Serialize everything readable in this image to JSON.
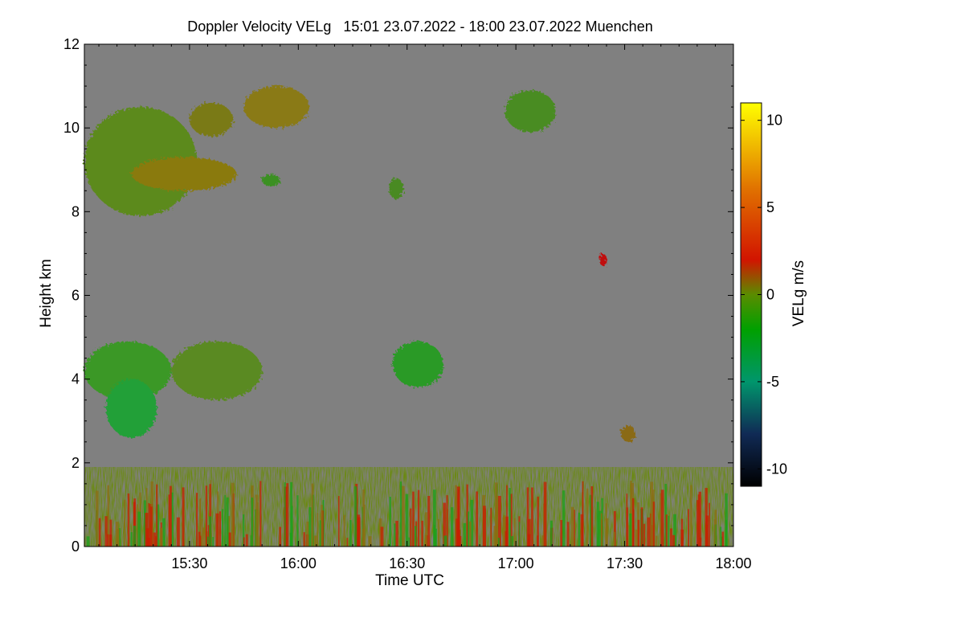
{
  "chart_data": {
    "type": "heatmap",
    "title": "Doppler Velocity VELg   15:01 23.07.2022 - 18:00 23.07.2022 Muenchen",
    "xlabel": "Time UTC",
    "ylabel": "Height km",
    "x_range_minutes_utc": [
      901,
      1080
    ],
    "xlim": [
      "15:01",
      "18:00"
    ],
    "x_ticks": [
      {
        "label": "15:30",
        "minutes": 930
      },
      {
        "label": "16:00",
        "minutes": 960
      },
      {
        "label": "16:30",
        "minutes": 990
      },
      {
        "label": "17:00",
        "minutes": 1020
      },
      {
        "label": "17:30",
        "minutes": 1050
      },
      {
        "label": "18:00",
        "minutes": 1080
      }
    ],
    "ylim": [
      0,
      12
    ],
    "y_ticks": [
      {
        "label": "0",
        "value": 0
      },
      {
        "label": "2",
        "value": 2
      },
      {
        "label": "4",
        "value": 4
      },
      {
        "label": "6",
        "value": 6
      },
      {
        "label": "8",
        "value": 8
      },
      {
        "label": "10",
        "value": 10
      },
      {
        "label": "12",
        "value": 12
      }
    ],
    "background_color": "#808080",
    "colorbar": {
      "label": "VELg m/s",
      "range": [
        -11,
        11
      ],
      "ticks": [
        {
          "label": "10",
          "value": 10
        },
        {
          "label": "5",
          "value": 5
        },
        {
          "label": "0",
          "value": 0
        },
        {
          "label": "-5",
          "value": -5
        },
        {
          "label": "-10",
          "value": -10
        }
      ],
      "colors": [
        {
          "value": -11,
          "color": "#000000"
        },
        {
          "value": -8,
          "color": "#102a55"
        },
        {
          "value": -5,
          "color": "#00966c"
        },
        {
          "value": -2,
          "color": "#00a000"
        },
        {
          "value": 0,
          "color": "#5a8c00"
        },
        {
          "value": 2,
          "color": "#d21400"
        },
        {
          "value": 6,
          "color": "#e07000"
        },
        {
          "value": 11,
          "color": "#ffff00"
        }
      ]
    },
    "regions": [
      {
        "name": "upper-cloud-main",
        "t": [
          901,
          932
        ],
        "h": [
          7.9,
          10.5
        ],
        "velocity": -0.6,
        "color": "#5c8a1a"
      },
      {
        "name": "upper-cloud-tail",
        "t": [
          914,
          943
        ],
        "h": [
          8.5,
          9.3
        ],
        "velocity": 2.0,
        "color": "#8a7a10"
      },
      {
        "name": "upper-cloud-streak",
        "t": [
          930,
          942
        ],
        "h": [
          9.8,
          10.6
        ],
        "velocity": 1.5,
        "color": "#7a7a18"
      },
      {
        "name": "upper-cloud-right",
        "t": [
          945,
          963
        ],
        "h": [
          10.0,
          11.0
        ],
        "velocity": 1.5,
        "color": "#8a7a18"
      },
      {
        "name": "small-cloud-930",
        "t": [
          950,
          955
        ],
        "h": [
          8.6,
          8.9
        ],
        "velocity": -1.5,
        "color": "#3a9020"
      },
      {
        "name": "small-cloud-1640",
        "t": [
          985,
          989
        ],
        "h": [
          8.3,
          8.8
        ],
        "velocity": -1.0,
        "color": "#4a8a20"
      },
      {
        "name": "cloud-1715",
        "t": [
          1017,
          1031
        ],
        "h": [
          9.9,
          10.9
        ],
        "velocity": -1.0,
        "color": "#4a8c20"
      },
      {
        "name": "mid-cloud-left",
        "t": [
          901,
          925
        ],
        "h": [
          3.5,
          4.9
        ],
        "velocity": -2.0,
        "color": "#3a9828"
      },
      {
        "name": "mid-cloud-virga",
        "t": [
          907,
          921
        ],
        "h": [
          2.6,
          4.0
        ],
        "velocity": -3.0,
        "color": "#23a038"
      },
      {
        "name": "mid-cloud-streaks",
        "t": [
          925,
          950
        ],
        "h": [
          3.5,
          4.9
        ],
        "velocity": -1.0,
        "color": "#5a8a20"
      },
      {
        "name": "mid-cloud-1640",
        "t": [
          986,
          1000
        ],
        "h": [
          3.8,
          4.9
        ],
        "velocity": -2.0,
        "color": "#2a9a28"
      },
      {
        "name": "echo-1735",
        "t": [
          1049,
          1053
        ],
        "h": [
          2.5,
          2.9
        ],
        "velocity": 1.5,
        "color": "#8a6a18"
      },
      {
        "name": "red-patch-1725",
        "t": [
          1043,
          1045
        ],
        "h": [
          6.7,
          7.0
        ],
        "velocity": 3.5,
        "color": "#c01010"
      },
      {
        "name": "boundary-layer",
        "t": [
          901,
          1080
        ],
        "h": [
          0,
          1.9
        ],
        "velocity": 0.5,
        "color": "#6a8a10"
      }
    ]
  }
}
